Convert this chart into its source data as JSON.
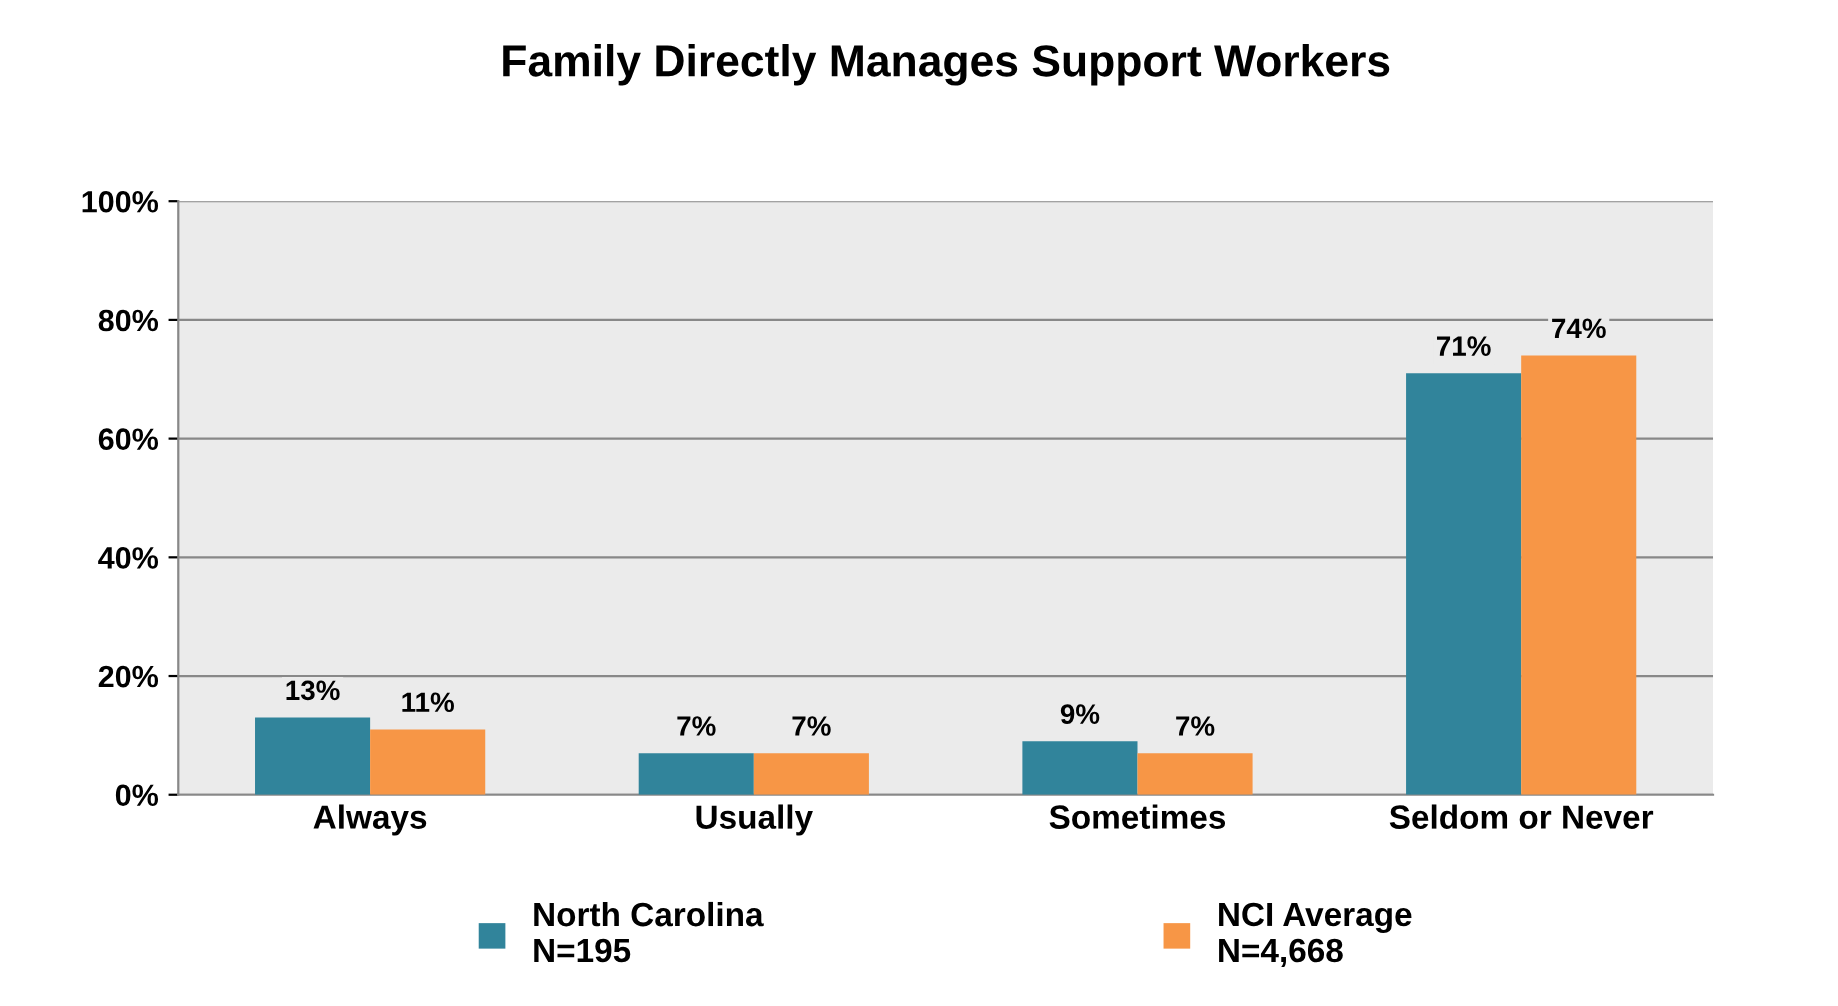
{
  "chart_data": {
    "type": "bar",
    "title": "Family Directly Manages Support Workers",
    "categories": [
      "Always",
      "Usually",
      "Sometimes",
      "Seldom or Never"
    ],
    "series": [
      {
        "name": "North Carolina\nN=195",
        "color": "#31849b",
        "values": [
          13,
          7,
          9,
          71
        ],
        "value_labels": [
          "13%",
          "7%",
          "9%",
          "71%"
        ]
      },
      {
        "name": "NCI Average\nN=4,668",
        "color": "#f79646",
        "values": [
          11,
          7,
          7,
          74
        ],
        "value_labels": [
          "11%",
          "7%",
          "7%",
          "74%"
        ]
      }
    ],
    "ylim": [
      0,
      100
    ],
    "yticks": [
      {
        "value": 0,
        "label": "0%"
      },
      {
        "value": 20,
        "label": "20%"
      },
      {
        "value": 40,
        "label": "40%"
      },
      {
        "value": 60,
        "label": "60%"
      },
      {
        "value": 80,
        "label": "80%"
      },
      {
        "value": 100,
        "label": "100%"
      }
    ],
    "grid": "y",
    "legend": "bottom"
  }
}
